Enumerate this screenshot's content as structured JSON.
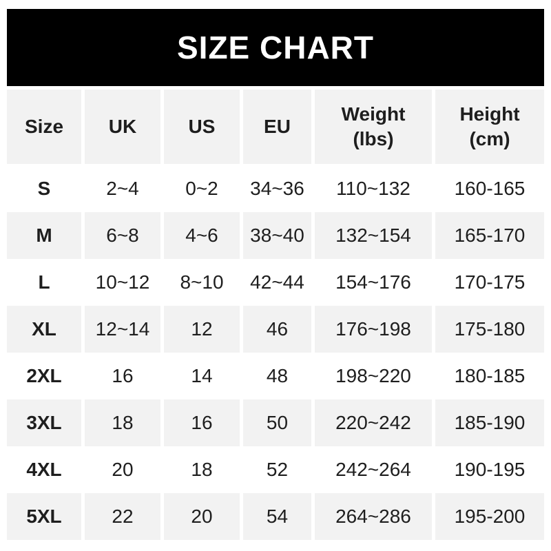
{
  "title": "SIZE CHART",
  "colors": {
    "banner_bg": "#000000",
    "banner_text": "#ffffff",
    "row_alt_bg": "#f2f2f2",
    "text": "#1e1e1e",
    "page_bg": "#ffffff"
  },
  "table": {
    "columns": [
      {
        "label": "Size"
      },
      {
        "label": "UK"
      },
      {
        "label": "US"
      },
      {
        "label": "EU"
      },
      {
        "label": "Weight (lbs)",
        "line1": "Weight",
        "line2": "(lbs)"
      },
      {
        "label": "Height (cm)",
        "line1": "Height",
        "line2": "(cm)"
      }
    ],
    "rows": [
      {
        "size": "S",
        "uk": "2~4",
        "us": "0~2",
        "eu": "34~36",
        "weight": "110~132",
        "height": "160-165"
      },
      {
        "size": "M",
        "uk": "6~8",
        "us": "4~6",
        "eu": "38~40",
        "weight": "132~154",
        "height": "165-170"
      },
      {
        "size": "L",
        "uk": "10~12",
        "us": "8~10",
        "eu": "42~44",
        "weight": "154~176",
        "height": "170-175"
      },
      {
        "size": "XL",
        "uk": "12~14",
        "us": "12",
        "eu": "46",
        "weight": "176~198",
        "height": "175-180"
      },
      {
        "size": "2XL",
        "uk": "16",
        "us": "14",
        "eu": "48",
        "weight": "198~220",
        "height": "180-185"
      },
      {
        "size": "3XL",
        "uk": "18",
        "us": "16",
        "eu": "50",
        "weight": "220~242",
        "height": "185-190"
      },
      {
        "size": "4XL",
        "uk": "20",
        "us": "18",
        "eu": "52",
        "weight": "242~264",
        "height": "190-195"
      },
      {
        "size": "5XL",
        "uk": "22",
        "us": "20",
        "eu": "54",
        "weight": "264~286",
        "height": "195-200"
      }
    ]
  }
}
